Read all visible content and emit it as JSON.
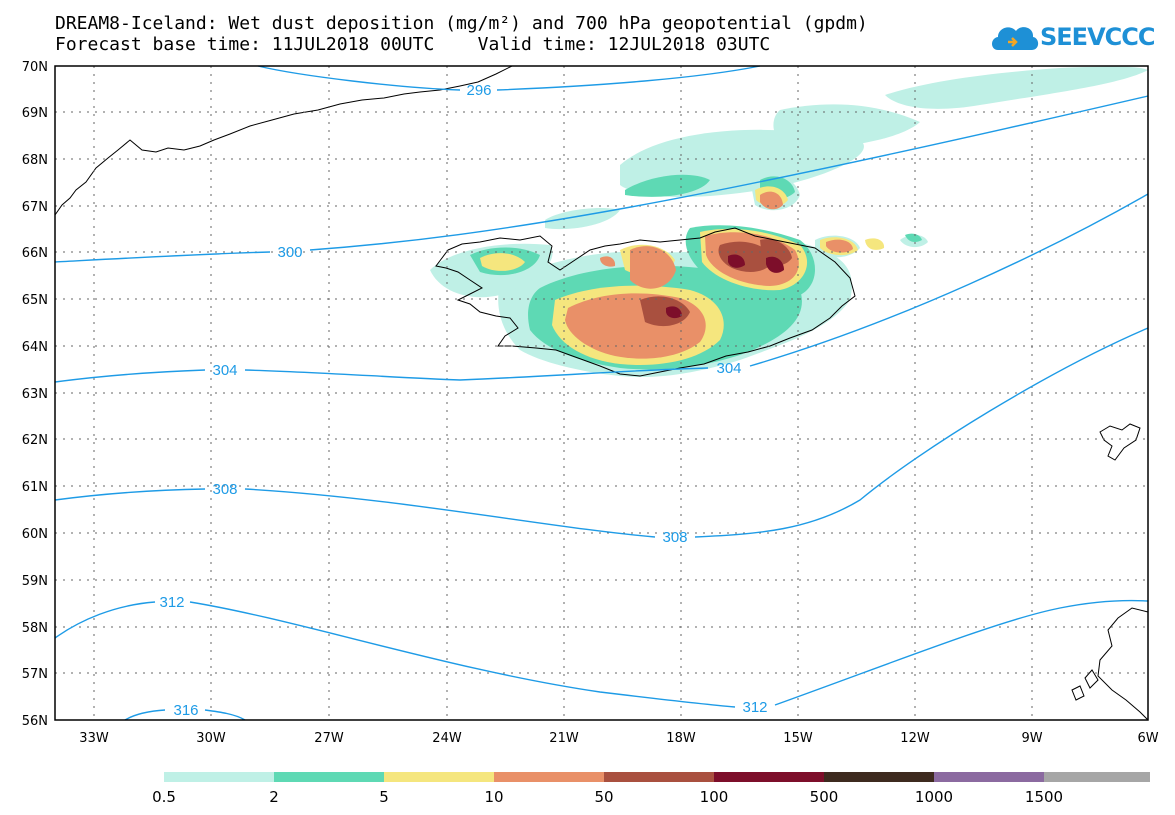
{
  "title": {
    "line1": "DREAM8-Iceland: Wet dust deposition (mg/m²) and 700 hPa geopotential (gpdm)",
    "line2": "Forecast base time: 11JUL2018 00UTC    Valid time: 12JUL2018 03UTC"
  },
  "logo": {
    "text": "SEEVCCC"
  },
  "axes": {
    "lat_labels": [
      "70N",
      "69N",
      "68N",
      "67N",
      "66N",
      "65N",
      "64N",
      "63N",
      "62N",
      "61N",
      "60N",
      "59N",
      "58N",
      "57N",
      "56N"
    ],
    "lon_labels": [
      "33W",
      "30W",
      "27W",
      "24W",
      "21W",
      "18W",
      "15W",
      "12W",
      "9W",
      "6W"
    ],
    "grid": true
  },
  "contours": {
    "labels": [
      "296",
      "300",
      "304",
      "304",
      "308",
      "308",
      "312",
      "312",
      "316"
    ],
    "color": "#1e9be6"
  },
  "legend": {
    "labels": [
      "0.5",
      "2",
      "5",
      "10",
      "50",
      "100",
      "500",
      "1000",
      "1500"
    ],
    "colors": [
      "#bff0e6",
      "#5ed9b4",
      "#f5e67e",
      "#e99068",
      "#a9503f",
      "#7d0e2a",
      "#3e2a1f",
      "#8b6aa0",
      "#a6a6a6"
    ]
  }
}
